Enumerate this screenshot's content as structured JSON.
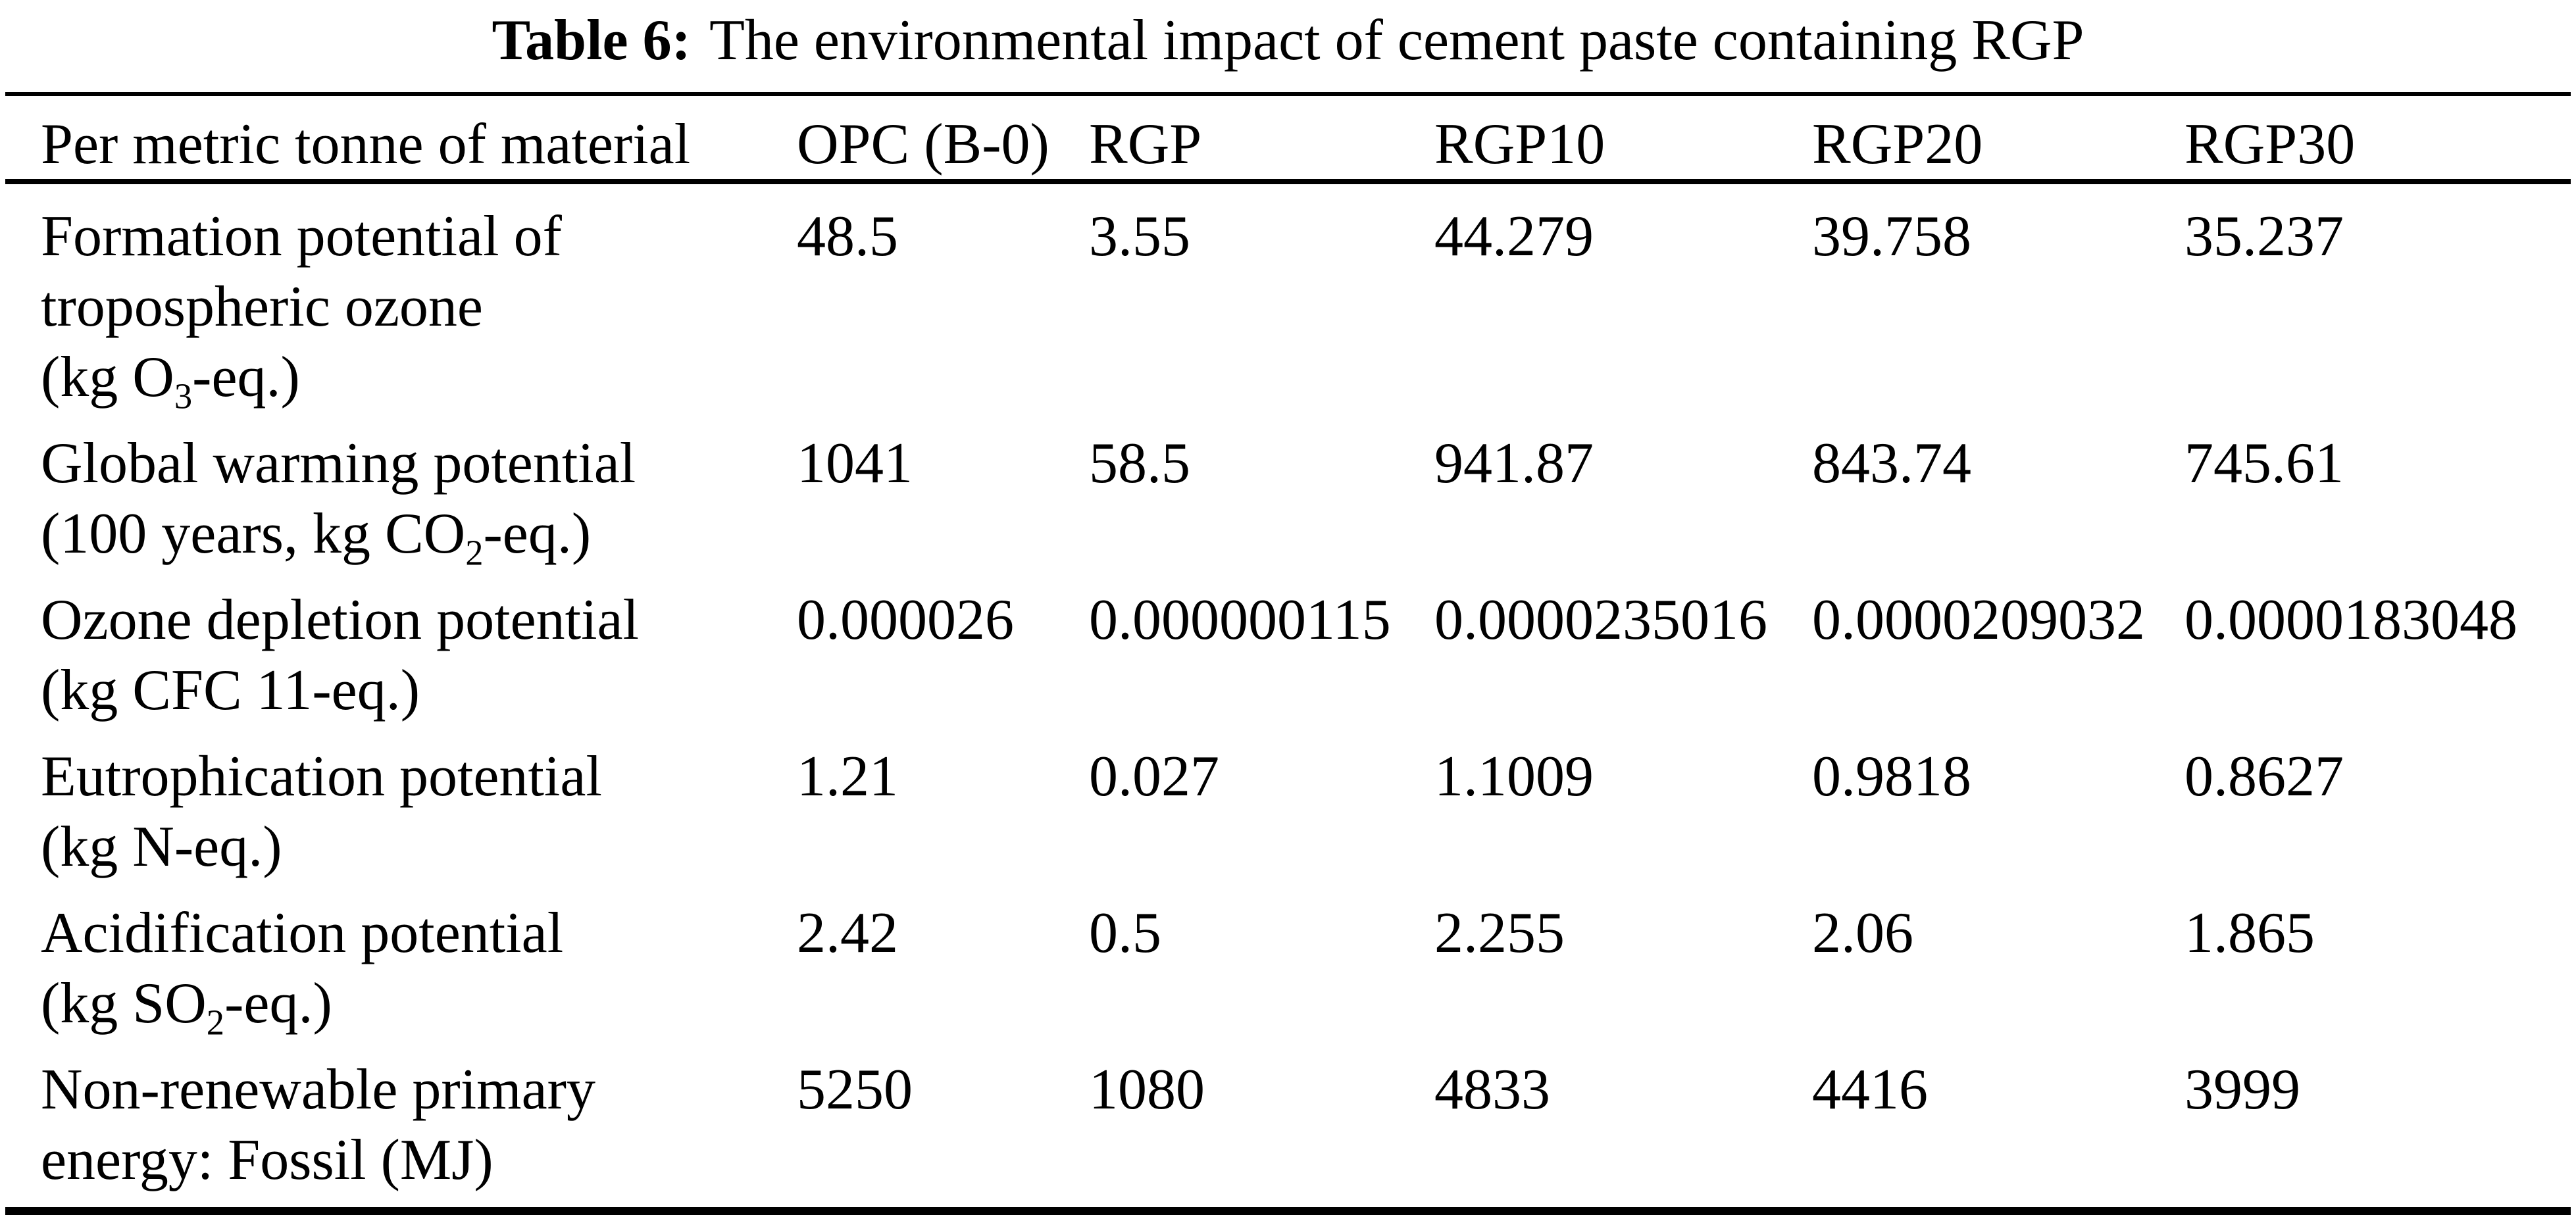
{
  "caption": {
    "label": "Table 6:",
    "text": "The environmental impact of cement paste containing RGP"
  },
  "table": {
    "columns": [
      "Per metric tonne of material",
      "OPC (B-0)",
      "RGP",
      "RGP10",
      "RGP20",
      "RGP30"
    ],
    "rows": [
      {
        "label": [
          {
            "pre": "Formation potential of"
          },
          {
            "pre": "tropospheric ozone"
          },
          {
            "pre": "(kg O",
            "sub": "3",
            "post": "-eq.)"
          }
        ],
        "values": [
          "48.5",
          "3.55",
          "44.279",
          "39.758",
          "35.237"
        ]
      },
      {
        "label": [
          {
            "pre": "Global warming potential"
          },
          {
            "pre": "(100 years, kg CO",
            "sub": "2",
            "post": "-eq.)"
          }
        ],
        "values": [
          "1041",
          "58.5",
          "941.87",
          "843.74",
          "745.61"
        ]
      },
      {
        "label": [
          {
            "pre": "Ozone depletion potential"
          },
          {
            "pre": "(kg CFC 11-eq.)"
          }
        ],
        "values": [
          "0.000026",
          "0.000000115",
          "0.0000235016",
          "0.0000209032",
          "0.0000183048"
        ]
      },
      {
        "label": [
          {
            "pre": "Eutrophication potential"
          },
          {
            "pre": "(kg N-eq.)"
          }
        ],
        "values": [
          "1.21",
          "0.027",
          "1.1009",
          "0.9818",
          "0.8627"
        ]
      },
      {
        "label": [
          {
            "pre": "Acidification potential"
          },
          {
            "pre": "(kg SO",
            "sub": "2",
            "post": "-eq.)"
          }
        ],
        "values": [
          "2.42",
          "0.5",
          "2.255",
          "2.06",
          "1.865"
        ]
      },
      {
        "label": [
          {
            "pre": "Non-renewable primary"
          },
          {
            "pre": "energy: Fossil (MJ)"
          }
        ],
        "values": [
          "5250",
          "1080",
          "4833",
          "4416",
          "3999"
        ]
      }
    ]
  }
}
